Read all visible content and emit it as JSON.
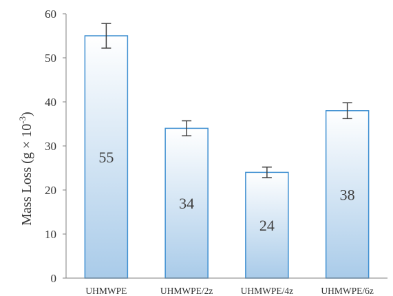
{
  "chart_data": {
    "type": "bar",
    "title": "",
    "xlabel": "",
    "ylabel": "Mass Loss (g × 10",
    "ylabel_superscript": "-3",
    "ylabel_close": ")",
    "categories": [
      "UHMWPE",
      "UHMWPE/2z",
      "UHMWPE/4z",
      "UHMWPE/6z"
    ],
    "values": [
      55,
      34,
      24,
      38
    ],
    "error": [
      2.8,
      1.7,
      1.2,
      1.8
    ],
    "data_labels": [
      "55",
      "34",
      "24",
      "38"
    ],
    "ylim": [
      0,
      60
    ],
    "yticks": [
      0,
      10,
      20,
      30,
      40,
      50,
      60
    ],
    "grid": false,
    "legend": "none",
    "colors": {
      "bar_top": "#ffffff",
      "bar_bottom": "#a9cbe9",
      "bar_border": "#3e8fd1",
      "error_bar": "#404040",
      "axis": "#7f7f7f"
    }
  }
}
